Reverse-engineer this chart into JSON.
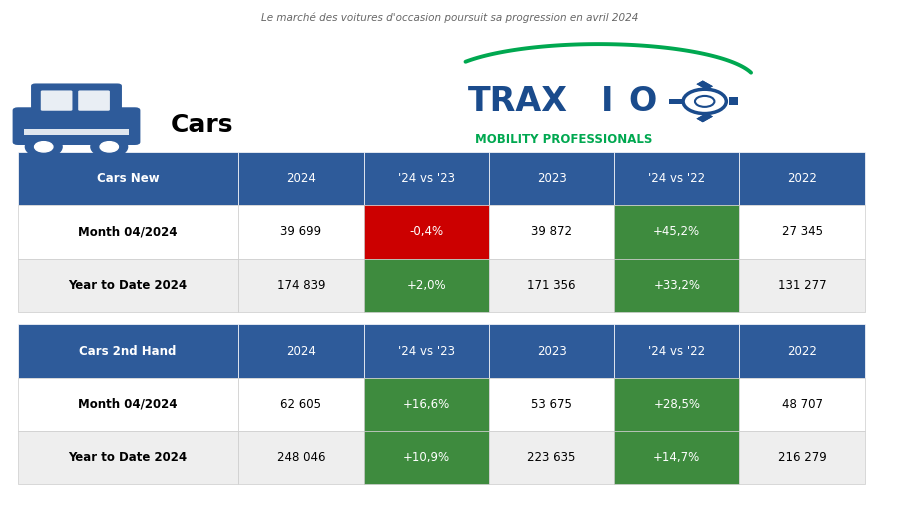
{
  "title": "Le marché des voitures d'occasion poursuit sa progression en avril 2024",
  "header_bg": "#2E5B9A",
  "header_text_color": "#FFFFFF",
  "row_bg_light": "#EEEEEE",
  "row_bg_white": "#FFFFFF",
  "green_color": "#3E8B3E",
  "red_color": "#CC0000",
  "table1_header": [
    "Cars New",
    "2024",
    "'24 vs '23",
    "2023",
    "'24 vs '22",
    "2022"
  ],
  "table1_rows": [
    [
      "Month 04/2024",
      "39 699",
      "-0,4%",
      "39 872",
      "+45,2%",
      "27 345"
    ],
    [
      "Year to Date 2024",
      "174 839",
      "+2,0%",
      "171 356",
      "+33,2%",
      "131 277"
    ]
  ],
  "table1_vs23_colors": [
    "red",
    "green"
  ],
  "table1_vs22_colors": [
    "green",
    "green"
  ],
  "table2_header": [
    "Cars 2nd Hand",
    "2024",
    "'24 vs '23",
    "2023",
    "'24 vs '22",
    "2022"
  ],
  "table2_rows": [
    [
      "Month 04/2024",
      "62 605",
      "+16,6%",
      "53 675",
      "+28,5%",
      "48 707"
    ],
    [
      "Year to Date 2024",
      "248 046",
      "+10,9%",
      "223 635",
      "+14,7%",
      "216 279"
    ]
  ],
  "table2_vs23_colors": [
    "green",
    "green"
  ],
  "table2_vs22_colors": [
    "green",
    "green"
  ],
  "traxio_green": "#00A850",
  "traxio_blue": "#1A4B8C",
  "car_icon_color": "#2E5B9A"
}
